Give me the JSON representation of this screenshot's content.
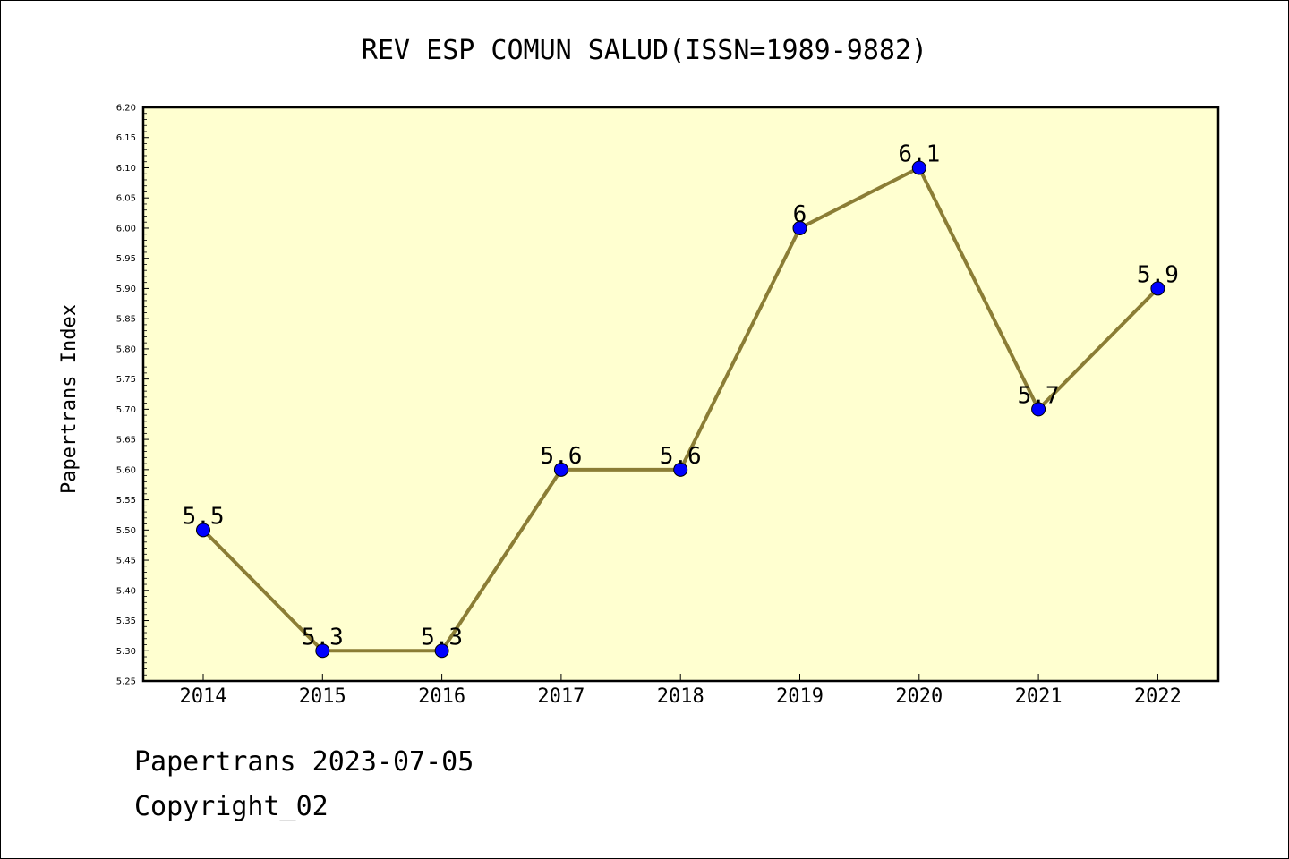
{
  "chart_data": {
    "type": "line",
    "title": "REV ESP COMUN SALUD(ISSN=1989-9882)",
    "ylabel": "Papertrans Index",
    "xlabel": "",
    "categories": [
      "2014",
      "2015",
      "2016",
      "2017",
      "2018",
      "2019",
      "2020",
      "2021",
      "2022"
    ],
    "values": [
      5.5,
      5.3,
      5.3,
      5.6,
      5.6,
      6.0,
      6.1,
      5.7,
      5.9
    ],
    "data_labels": [
      "5.5",
      "5.3",
      "5.3",
      "5.6",
      "5.6",
      "6",
      "6.1",
      "5.7",
      "5.9"
    ],
    "ylim": [
      5.25,
      6.2
    ],
    "yticks": [
      "5.25",
      "5.30",
      "5.35",
      "5.40",
      "5.45",
      "5.50",
      "5.55",
      "5.60",
      "5.65",
      "5.70",
      "5.75",
      "5.80",
      "5.85",
      "5.90",
      "5.95",
      "6.00",
      "6.05",
      "6.10",
      "6.15",
      "6.20"
    ],
    "grid": false,
    "colors": {
      "plot_background": "#ffffd0",
      "line": "#8b7d35",
      "marker": "#0000ff"
    }
  },
  "footer": {
    "date_line": "Papertrans 2023-07-05",
    "copyright": "Copyright_02"
  }
}
